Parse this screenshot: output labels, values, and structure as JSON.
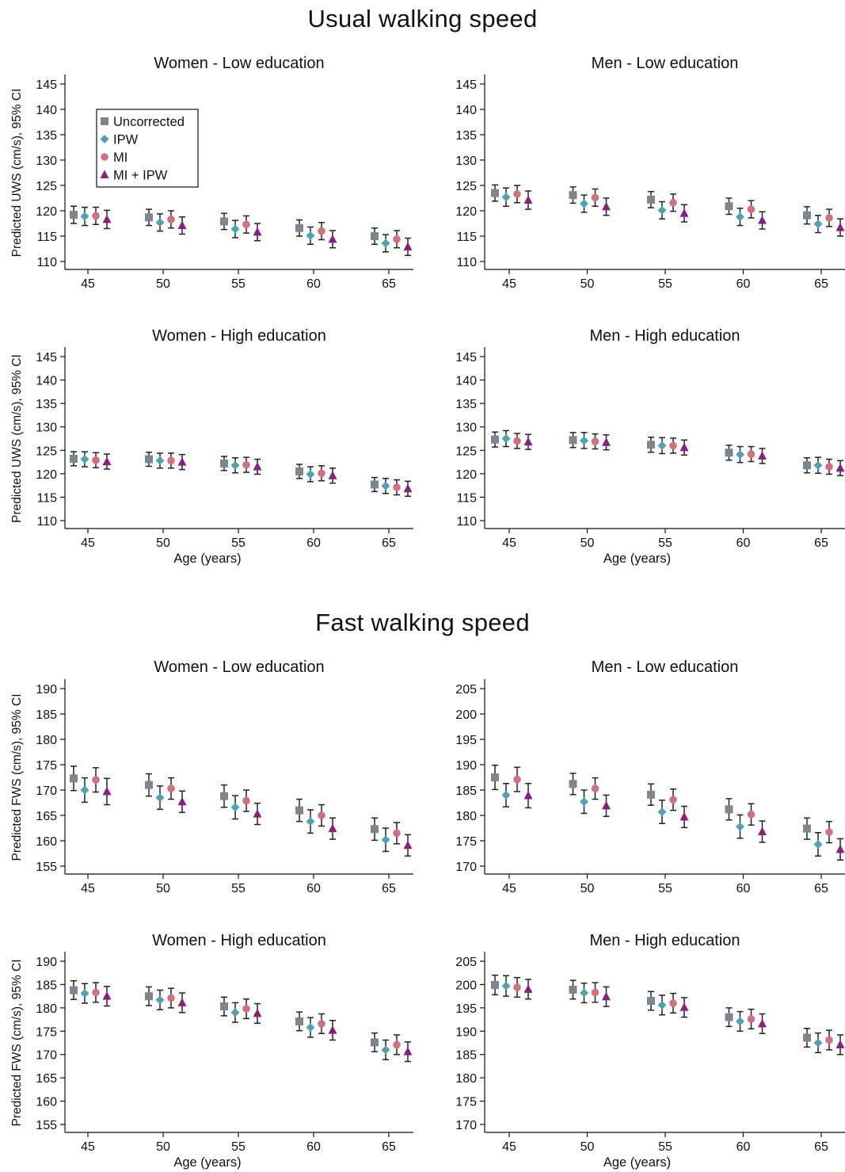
{
  "sections": [
    {
      "title": "Usual walking speed",
      "ylabel": "Predicted UWS (cm/s), 95% CI"
    },
    {
      "title": "Fast walking speed",
      "ylabel": "Predicted FWS (cm/s), 95% CI"
    }
  ],
  "legend": {
    "entries": [
      {
        "label": "Uncorrected",
        "marker": "square",
        "color": "#7b8690"
      },
      {
        "label": "IPW",
        "marker": "diamond",
        "color": "#4aa4b6"
      },
      {
        "label": "MI",
        "marker": "circle",
        "color": "#d36f80"
      },
      {
        "label": "MI + IPW",
        "marker": "triangle",
        "color": "#8c1d86"
      }
    ]
  },
  "chart_data": [
    {
      "type": "scatter",
      "section": 0,
      "title": "Women - Low education",
      "xlabel": "",
      "ylabel": "Predicted UWS (cm/s), 95% CI",
      "categories": [
        45,
        50,
        55,
        60,
        65
      ],
      "ylim": [
        110,
        145
      ],
      "yticks": [
        110,
        115,
        120,
        125,
        130,
        135,
        140,
        145
      ],
      "legend": "inside top-left",
      "series": [
        {
          "name": "Uncorrected",
          "values": [
            119.2,
            118.7,
            117.9,
            116.6,
            115.0
          ],
          "lower": [
            117.5,
            117.1,
            116.3,
            115.0,
            113.4
          ],
          "upper": [
            120.9,
            120.3,
            119.5,
            118.2,
            116.6
          ]
        },
        {
          "name": "IPW",
          "values": [
            118.9,
            117.7,
            116.4,
            115.1,
            113.6
          ],
          "lower": [
            117.1,
            116.0,
            114.7,
            113.4,
            111.9
          ],
          "upper": [
            120.7,
            119.4,
            118.1,
            116.8,
            115.3
          ]
        },
        {
          "name": "MI",
          "values": [
            119.0,
            118.3,
            117.3,
            116.0,
            114.4
          ],
          "lower": [
            117.3,
            116.6,
            115.6,
            114.3,
            112.7
          ],
          "upper": [
            120.7,
            120.0,
            119.0,
            117.7,
            116.1
          ]
        },
        {
          "name": "MI + IPW",
          "values": [
            118.3,
            117.1,
            115.8,
            114.4,
            112.9
          ],
          "lower": [
            116.5,
            115.4,
            114.1,
            112.7,
            111.2
          ],
          "upper": [
            120.1,
            118.8,
            117.5,
            116.1,
            114.6
          ]
        }
      ]
    },
    {
      "type": "scatter",
      "section": 0,
      "title": "Men - Low education",
      "xlabel": "",
      "ylabel": "",
      "categories": [
        45,
        50,
        55,
        60,
        65
      ],
      "ylim": [
        110,
        145
      ],
      "yticks": [
        110,
        115,
        120,
        125,
        130,
        135,
        140,
        145
      ],
      "series": [
        {
          "name": "Uncorrected",
          "values": [
            123.5,
            123.1,
            122.2,
            120.9,
            119.1
          ],
          "lower": [
            121.9,
            121.5,
            120.6,
            119.3,
            117.4
          ],
          "upper": [
            125.1,
            124.7,
            123.8,
            122.5,
            120.8
          ]
        },
        {
          "name": "IPW",
          "values": [
            122.7,
            121.4,
            120.1,
            118.8,
            117.4
          ],
          "lower": [
            120.9,
            119.7,
            118.4,
            117.1,
            115.7
          ],
          "upper": [
            124.5,
            123.1,
            121.8,
            120.5,
            119.1
          ]
        },
        {
          "name": "MI",
          "values": [
            123.3,
            122.6,
            121.6,
            120.3,
            118.6
          ],
          "lower": [
            121.6,
            120.9,
            119.9,
            118.6,
            116.9
          ],
          "upper": [
            125.0,
            124.3,
            123.3,
            122.0,
            120.3
          ]
        },
        {
          "name": "MI + IPW",
          "values": [
            122.1,
            120.8,
            119.5,
            118.1,
            116.7
          ],
          "lower": [
            120.3,
            119.1,
            117.8,
            116.4,
            115.0
          ],
          "upper": [
            123.9,
            122.5,
            121.2,
            119.8,
            118.4
          ]
        }
      ]
    },
    {
      "type": "scatter",
      "section": 0,
      "title": "Women - High education",
      "xlabel": "Age (years)",
      "ylabel": "Predicted UWS (cm/s), 95% CI",
      "categories": [
        45,
        50,
        55,
        60,
        65
      ],
      "ylim": [
        110,
        145
      ],
      "yticks": [
        110,
        115,
        120,
        125,
        130,
        135,
        140,
        145
      ],
      "series": [
        {
          "name": "Uncorrected",
          "values": [
            123.2,
            123.1,
            122.2,
            120.5,
            117.7
          ],
          "lower": [
            121.7,
            121.6,
            120.7,
            119.0,
            116.2
          ],
          "upper": [
            124.7,
            124.6,
            123.7,
            122.0,
            119.2
          ]
        },
        {
          "name": "IPW",
          "values": [
            123.1,
            122.8,
            121.8,
            119.9,
            117.4
          ],
          "lower": [
            121.5,
            121.2,
            120.2,
            118.3,
            115.8
          ],
          "upper": [
            124.7,
            124.4,
            123.4,
            121.5,
            119.0
          ]
        },
        {
          "name": "MI",
          "values": [
            122.9,
            122.8,
            121.9,
            120.1,
            117.1
          ],
          "lower": [
            121.3,
            121.2,
            120.3,
            118.5,
            115.5
          ],
          "upper": [
            124.5,
            124.4,
            123.5,
            121.7,
            118.7
          ]
        },
        {
          "name": "MI + IPW",
          "values": [
            122.6,
            122.5,
            121.5,
            119.6,
            116.8
          ],
          "lower": [
            121.0,
            120.9,
            119.9,
            118.0,
            115.2
          ],
          "upper": [
            124.2,
            124.1,
            123.1,
            121.2,
            118.4
          ]
        }
      ]
    },
    {
      "type": "scatter",
      "section": 0,
      "title": "Men - High education",
      "xlabel": "Age (years)",
      "ylabel": "",
      "categories": [
        45,
        50,
        55,
        60,
        65
      ],
      "ylim": [
        110,
        145
      ],
      "yticks": [
        110,
        115,
        120,
        125,
        130,
        135,
        140,
        145
      ],
      "series": [
        {
          "name": "Uncorrected",
          "values": [
            127.3,
            127.2,
            126.2,
            124.5,
            121.8
          ],
          "lower": [
            125.7,
            125.6,
            124.6,
            122.9,
            120.2
          ],
          "upper": [
            128.9,
            128.8,
            127.8,
            126.1,
            123.4
          ]
        },
        {
          "name": "IPW",
          "values": [
            127.5,
            127.1,
            126.0,
            124.1,
            121.8
          ],
          "lower": [
            125.8,
            125.4,
            124.3,
            122.4,
            120.1
          ],
          "upper": [
            129.2,
            128.8,
            127.7,
            125.8,
            123.5
          ]
        },
        {
          "name": "MI",
          "values": [
            127.0,
            126.9,
            126.0,
            124.2,
            121.5
          ],
          "lower": [
            125.4,
            125.3,
            124.4,
            122.6,
            119.9
          ],
          "upper": [
            128.6,
            128.5,
            127.6,
            125.8,
            123.1
          ]
        },
        {
          "name": "MI + IPW",
          "values": [
            126.8,
            126.7,
            125.6,
            123.8,
            121.2
          ],
          "lower": [
            125.2,
            125.1,
            124.0,
            122.2,
            119.6
          ],
          "upper": [
            128.4,
            128.3,
            127.2,
            125.4,
            122.8
          ]
        }
      ]
    },
    {
      "type": "scatter",
      "section": 1,
      "title": "Women - Low education",
      "xlabel": "",
      "ylabel": "Predicted FWS (cm/s), 95% CI",
      "categories": [
        45,
        50,
        55,
        60,
        65
      ],
      "ylim": [
        155,
        190
      ],
      "yticks": [
        155,
        160,
        165,
        170,
        175,
        180,
        185,
        190
      ],
      "series": [
        {
          "name": "Uncorrected",
          "values": [
            172.3,
            171.0,
            168.8,
            166.0,
            162.3
          ],
          "lower": [
            169.9,
            168.8,
            166.6,
            163.8,
            160.1
          ],
          "upper": [
            174.7,
            173.2,
            171.0,
            168.2,
            164.5
          ]
        },
        {
          "name": "IPW",
          "values": [
            170.0,
            168.5,
            166.6,
            163.8,
            160.2
          ],
          "lower": [
            167.6,
            166.2,
            164.3,
            161.5,
            157.9
          ],
          "upper": [
            172.4,
            170.8,
            168.9,
            166.1,
            162.5
          ]
        },
        {
          "name": "MI",
          "values": [
            172.0,
            170.3,
            167.9,
            165.0,
            161.5
          ],
          "lower": [
            169.6,
            168.2,
            165.8,
            162.9,
            159.4
          ],
          "upper": [
            174.4,
            172.4,
            170.0,
            167.1,
            163.6
          ]
        },
        {
          "name": "MI + IPW",
          "values": [
            169.7,
            167.7,
            165.3,
            162.4,
            159.1
          ],
          "lower": [
            167.1,
            165.6,
            163.2,
            160.3,
            157.0
          ],
          "upper": [
            172.3,
            169.8,
            167.4,
            164.5,
            161.2
          ]
        }
      ]
    },
    {
      "type": "scatter",
      "section": 1,
      "title": "Men - Low education",
      "xlabel": "",
      "ylabel": "",
      "categories": [
        45,
        50,
        55,
        60,
        65
      ],
      "ylim": [
        170,
        205
      ],
      "yticks": [
        170,
        175,
        180,
        185,
        190,
        195,
        200,
        205
      ],
      "series": [
        {
          "name": "Uncorrected",
          "values": [
            187.5,
            186.2,
            184.1,
            181.2,
            177.4
          ],
          "lower": [
            185.1,
            184.1,
            182.0,
            179.1,
            175.3
          ],
          "upper": [
            189.9,
            188.3,
            186.2,
            183.3,
            179.5
          ]
        },
        {
          "name": "IPW",
          "values": [
            184.0,
            182.7,
            180.7,
            177.8,
            174.3
          ],
          "lower": [
            181.7,
            180.4,
            178.4,
            175.5,
            172.0
          ],
          "upper": [
            186.3,
            185.0,
            183.0,
            180.1,
            176.6
          ]
        },
        {
          "name": "MI",
          "values": [
            187.1,
            185.3,
            183.1,
            180.2,
            176.7
          ],
          "lower": [
            184.7,
            183.2,
            181.0,
            178.1,
            174.6
          ],
          "upper": [
            189.5,
            187.4,
            185.2,
            182.3,
            178.8
          ]
        },
        {
          "name": "MI + IPW",
          "values": [
            183.9,
            181.9,
            179.7,
            176.8,
            173.3
          ],
          "lower": [
            181.5,
            179.8,
            177.6,
            174.7,
            171.2
          ],
          "upper": [
            186.3,
            184.0,
            181.8,
            178.9,
            175.4
          ]
        }
      ]
    },
    {
      "type": "scatter",
      "section": 1,
      "title": "Women - High education",
      "xlabel": "Age (years)",
      "ylabel": "Predicted FWS (cm/s), 95% CI",
      "categories": [
        45,
        50,
        55,
        60,
        65
      ],
      "ylim": [
        155,
        190
      ],
      "yticks": [
        155,
        160,
        165,
        170,
        175,
        180,
        185,
        190
      ],
      "series": [
        {
          "name": "Uncorrected",
          "values": [
            183.8,
            182.5,
            180.3,
            177.1,
            172.6
          ],
          "lower": [
            181.8,
            180.5,
            178.3,
            175.1,
            170.6
          ],
          "upper": [
            185.8,
            184.5,
            182.3,
            179.1,
            174.6
          ]
        },
        {
          "name": "IPW",
          "values": [
            183.1,
            181.7,
            179.0,
            175.8,
            171.0
          ],
          "lower": [
            181.0,
            179.6,
            176.9,
            173.7,
            168.9
          ],
          "upper": [
            185.2,
            183.8,
            181.1,
            177.9,
            173.1
          ]
        },
        {
          "name": "MI",
          "values": [
            183.3,
            182.1,
            179.8,
            176.6,
            172.1
          ],
          "lower": [
            181.2,
            180.0,
            177.7,
            174.5,
            170.0
          ],
          "upper": [
            185.4,
            184.2,
            181.9,
            178.7,
            174.2
          ]
        },
        {
          "name": "MI + IPW",
          "values": [
            182.5,
            181.1,
            178.8,
            175.2,
            170.6
          ],
          "lower": [
            180.4,
            179.0,
            176.7,
            173.1,
            168.5
          ],
          "upper": [
            184.6,
            183.2,
            180.9,
            177.3,
            172.7
          ]
        }
      ]
    },
    {
      "type": "scatter",
      "section": 1,
      "title": "Men - High education",
      "xlabel": "Age (years)",
      "ylabel": "",
      "categories": [
        45,
        50,
        55,
        60,
        65
      ],
      "ylim": [
        170,
        205
      ],
      "yticks": [
        170,
        175,
        180,
        185,
        190,
        195,
        200,
        205
      ],
      "series": [
        {
          "name": "Uncorrected",
          "values": [
            199.9,
            198.9,
            196.5,
            193.0,
            188.6
          ],
          "lower": [
            197.8,
            196.9,
            194.5,
            191.0,
            186.6
          ],
          "upper": [
            202.0,
            200.9,
            198.5,
            195.0,
            190.6
          ]
        },
        {
          "name": "IPW",
          "values": [
            199.7,
            198.2,
            195.6,
            192.1,
            187.5
          ],
          "lower": [
            197.5,
            196.1,
            193.5,
            190.0,
            185.4
          ],
          "upper": [
            201.9,
            200.3,
            197.7,
            194.2,
            189.6
          ]
        },
        {
          "name": "MI",
          "values": [
            199.4,
            198.3,
            196.0,
            192.6,
            188.1
          ],
          "lower": [
            197.3,
            196.2,
            193.9,
            190.5,
            186.0
          ],
          "upper": [
            201.5,
            200.4,
            198.1,
            194.7,
            190.2
          ]
        },
        {
          "name": "MI + IPW",
          "values": [
            199.0,
            197.4,
            195.1,
            191.6,
            187.1
          ],
          "lower": [
            196.9,
            195.3,
            193.0,
            189.5,
            185.0
          ],
          "upper": [
            201.1,
            199.5,
            197.2,
            193.7,
            189.2
          ]
        }
      ]
    }
  ]
}
